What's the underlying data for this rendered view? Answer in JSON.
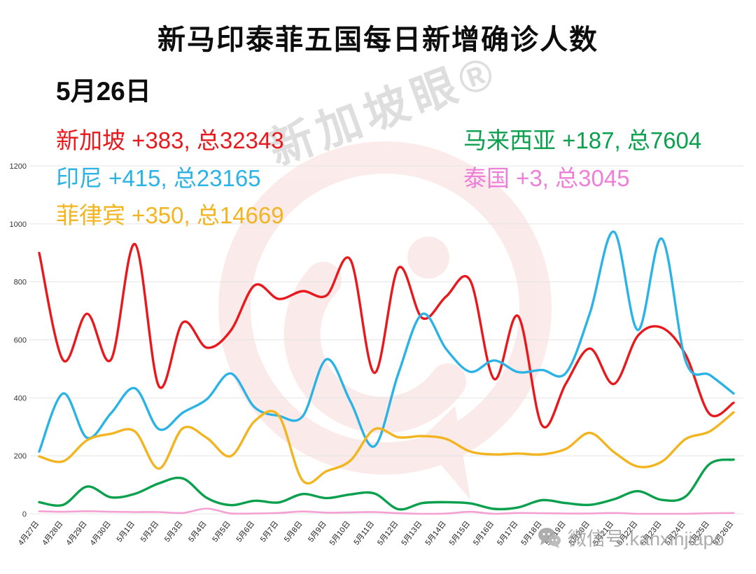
{
  "title": "新马印泰菲五国每日新增确诊人数",
  "date_label": "5月26日",
  "legend": [
    {
      "id": "singapore",
      "text": "新加坡 +383, 总32343",
      "color": "#e8191d"
    },
    {
      "id": "malaysia",
      "text": "马来西亚 +187, 总7604",
      "color": "#0aa04d"
    },
    {
      "id": "indonesia",
      "text": "印尼 +415, 总23165",
      "color": "#2bb3e6"
    },
    {
      "id": "thailand",
      "text": "泰国 +3, 总3045",
      "color": "#ee7fd8"
    },
    {
      "id": "philippines",
      "text": "菲律宾 +350, 总14669",
      "color": "#f2b41f"
    }
  ],
  "watermark": {
    "brand": "新加坡眼®",
    "wechat": "微信号:kanxinjiapo",
    "logo_color": "#e04848"
  },
  "chart_data": {
    "type": "line",
    "title": "新马印泰菲五国每日新增确诊人数",
    "xlabel": "",
    "ylabel": "",
    "ylim": [
      0,
      1200
    ],
    "yticks": [
      0,
      200,
      400,
      600,
      800,
      1000,
      1200
    ],
    "grid": true,
    "legend_position": "top",
    "x": [
      "4月27日",
      "4月28日",
      "4月29日",
      "4月30日",
      "5月1日",
      "5月2日",
      "5月3日",
      "5月4日",
      "5月5日",
      "5月6日",
      "5月7日",
      "5月8日",
      "5月9日",
      "5月10日",
      "5月11日",
      "5月12日",
      "5月13日",
      "5月14日",
      "5月15日",
      "5月16日",
      "5月17日",
      "5月18日",
      "5月19日",
      "5月20日",
      "5月21日",
      "5月22日",
      "5月23日",
      "5月24日",
      "5月25日",
      "5月26日"
    ],
    "series": [
      {
        "name": "新加坡",
        "color": "#e8191d",
        "width": 3.4,
        "values": [
          900,
          530,
          690,
          532,
          930,
          440,
          660,
          573,
          632,
          788,
          741,
          768,
          753,
          876,
          486,
          848,
          675,
          750,
          805,
          465,
          682,
          305,
          450,
          570,
          448,
          614,
          642,
          548,
          344,
          383
        ]
      },
      {
        "name": "印尼",
        "color": "#2bb3e6",
        "width": 3.4,
        "values": [
          215,
          415,
          262,
          347,
          433,
          292,
          349,
          395,
          484,
          367,
          338,
          336,
          533,
          387,
          233,
          484,
          689,
          568,
          490,
          529,
          489,
          496,
          486,
          693,
          973,
          634,
          949,
          526,
          479,
          415
        ]
      },
      {
        "name": "菲律宾",
        "color": "#f2b41f",
        "width": 3.4,
        "values": [
          198,
          181,
          254,
          276,
          284,
          156,
          295,
          262,
          199,
          320,
          339,
          115,
          147,
          184,
          292,
          264,
          268,
          258,
          215,
          205,
          208,
          205,
          224,
          279,
          213,
          163,
          180,
          258,
          284,
          350
        ]
      },
      {
        "name": "马来西亚",
        "color": "#0aa04d",
        "width": 3.4,
        "values": [
          40,
          31,
          94,
          57,
          69,
          105,
          122,
          55,
          30,
          45,
          39,
          68,
          54,
          67,
          70,
          16,
          37,
          40,
          36,
          17,
          22,
          47,
          37,
          31,
          50,
          78,
          48,
          60,
          172,
          187
        ]
      },
      {
        "name": "泰国",
        "color": "#f5a0d3",
        "width": 2.6,
        "values": [
          9,
          7,
          9,
          7,
          6,
          6,
          3,
          18,
          1,
          1,
          3,
          8,
          4,
          5,
          6,
          2,
          0,
          1,
          7,
          0,
          3,
          2,
          1,
          1,
          3,
          0,
          0,
          0,
          2,
          3
        ]
      }
    ]
  }
}
